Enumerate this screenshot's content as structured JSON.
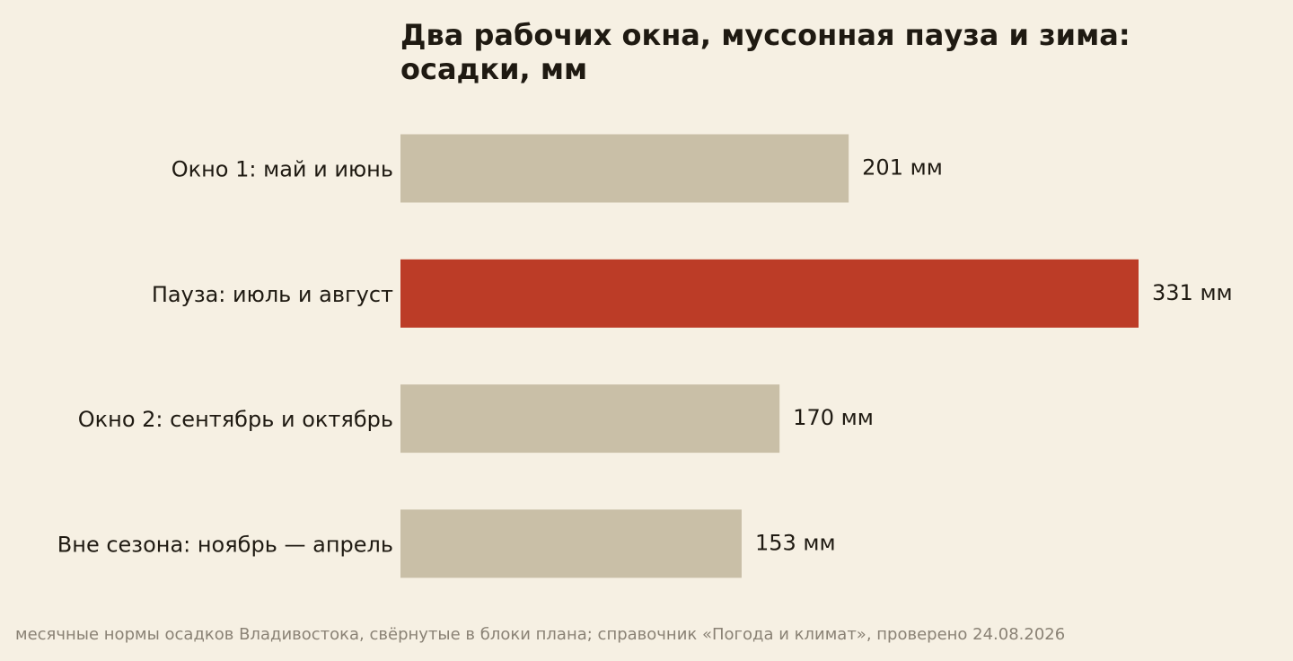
{
  "chart_data": {
    "type": "bar",
    "orientation": "horizontal",
    "title": "Два рабочих окна, муссонная пауза и зима: осадки, мм",
    "categories": [
      "Окно 1: май и июнь",
      "Пауза: июль и август",
      "Окно 2: сентябрь и октябрь",
      "Вне сезона: ноябрь — апрель"
    ],
    "values": [
      201,
      331,
      170,
      153
    ],
    "value_labels": [
      "201 мм",
      "331 мм",
      "170 мм",
      "153 мм"
    ],
    "highlight_index": 1,
    "colors": {
      "default": "#c9bfa7",
      "highlight": "#bc3c27",
      "background": "#f6f0e3"
    },
    "xlim": [
      0,
      331
    ],
    "grid": false,
    "legend": "none",
    "xlabel": "",
    "ylabel": ""
  },
  "footer": {
    "source": "месячные нормы осадков Владивостока, свёрнутые в блоки плана; справочник «Погода и климат», проверено 24.08.2026"
  }
}
